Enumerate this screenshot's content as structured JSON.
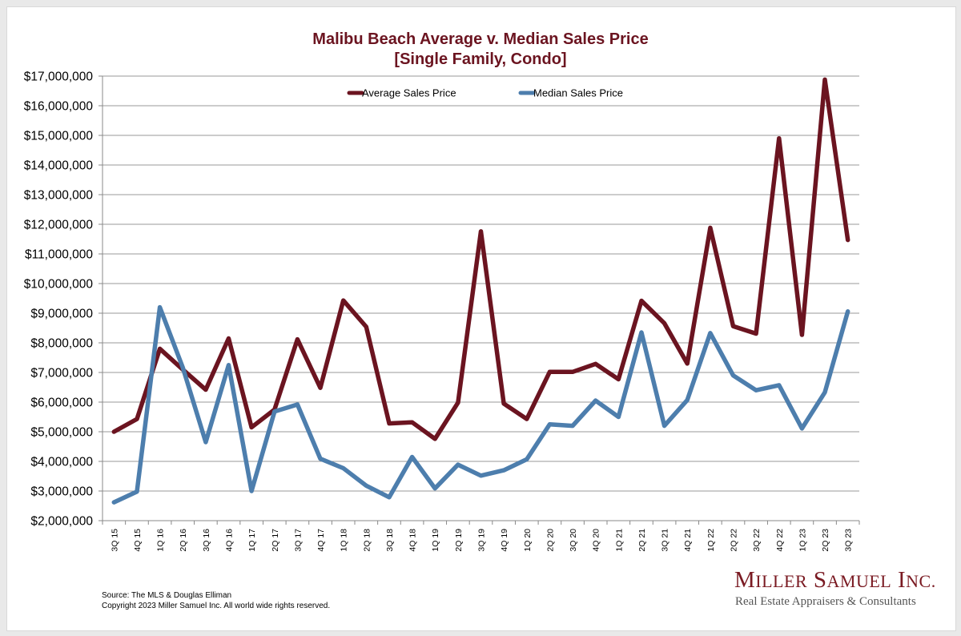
{
  "chart_data": {
    "type": "line",
    "title": "Malibu Beach Average v. Median Sales Price",
    "subtitle": "[Single Family, Condo]",
    "categories": [
      "3Q 15",
      "4Q 15",
      "1Q 16",
      "2Q 16",
      "3Q 16",
      "4Q 16",
      "1Q 17",
      "2Q 17",
      "3Q 17",
      "4Q 17",
      "1Q 18",
      "2Q 18",
      "3Q 18",
      "4Q 18",
      "1Q 19",
      "2Q 19",
      "3Q 19",
      "4Q 19",
      "1Q 20",
      "2Q 20",
      "3Q 20",
      "4Q 20",
      "1Q 21",
      "2Q 21",
      "3Q 21",
      "4Q 21",
      "1Q 22",
      "2Q 22",
      "3Q 22",
      "4Q 22",
      "1Q 23",
      "2Q 23",
      "3Q 23"
    ],
    "series": [
      {
        "name": "Average Sales Price",
        "color": "#6b1420",
        "values": [
          5000000,
          5430000,
          7800000,
          7100000,
          6420000,
          8150000,
          5150000,
          5750000,
          8120000,
          6480000,
          9430000,
          8540000,
          5280000,
          5320000,
          4760000,
          5980000,
          11760000,
          5950000,
          5430000,
          7020000,
          7020000,
          7290000,
          6770000,
          9420000,
          8660000,
          7300000,
          11880000,
          8560000,
          8310000,
          14900000,
          8270000,
          16880000,
          11470000
        ]
      },
      {
        "name": "Median Sales Price",
        "color": "#4d7ead",
        "values": [
          2620000,
          2980000,
          9200000,
          7170000,
          4650000,
          7250000,
          3000000,
          5680000,
          5920000,
          4090000,
          3770000,
          3180000,
          2790000,
          4150000,
          3090000,
          3890000,
          3520000,
          3700000,
          4070000,
          5250000,
          5200000,
          6050000,
          5500000,
          8350000,
          5200000,
          6070000,
          8330000,
          6900000,
          6400000,
          6570000,
          5110000,
          6330000,
          9060000
        ]
      }
    ],
    "ylim": [
      2000000,
      17000000
    ],
    "yticks": [
      "$2,000,000",
      "$3,000,000",
      "$4,000,000",
      "$5,000,000",
      "$6,000,000",
      "$7,000,000",
      "$8,000,000",
      "$9,000,000",
      "$10,000,000",
      "$11,000,000",
      "$12,000,000",
      "$13,000,000",
      "$14,000,000",
      "$15,000,000",
      "$16,000,000",
      "$17,000,000"
    ],
    "grid": true,
    "legend": "top-center"
  },
  "footer": {
    "source": "Source: The MLS & Douglas Elliman",
    "copyright": "Copyright 2023 Miller Samuel Inc.  All world wide rights reserved."
  },
  "brand": {
    "name": "Miller Samuel Inc.",
    "tagline": "Real Estate Appraisers & Consultants"
  }
}
